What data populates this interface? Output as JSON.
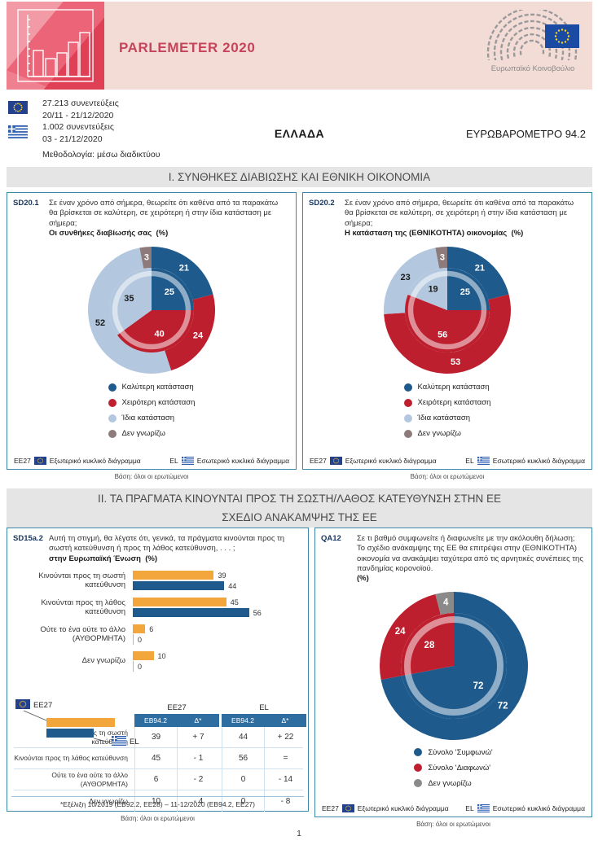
{
  "header": {
    "title": "PARLEMETER 2020",
    "ep_caption": "Ευρωπαϊκό Κοινοβούλιο"
  },
  "meta": {
    "eu_interviews": "27.213 συνεντεύξεις",
    "eu_dates": "20/11 - 21/12/2020",
    "el_interviews": "1.002 συνεντεύξεις",
    "el_dates": "03 - 21/12/2020",
    "methodology": "Μεθοδολογία: μέσω διαδικτύου",
    "country": "ΕΛΛΑΔΑ",
    "survey": "ΕΥΡΩΒΑΡΟΜΕΤΡΟ 94.2"
  },
  "sections": {
    "one_title": "Ι. ΣΥΝΘΗΚΕΣ ΔΙΑΒΙΩΣΗΣ ΚΑΙ ΕΘΝΙΚΗ ΟΙΚΟΝΟΜΙΑ",
    "two_title_line1": "ΙΙ. ΤΑ ΠΡΑΓΜΑΤΑ ΚΙΝΟΥΝΤΑΙ ΠΡΟΣ ΤΗ ΣΩΣΤΗ/ΛΑΘΟΣ ΚΑΤΕΥΘΥΝΣΗ ΣΤΗΝ ΕΕ",
    "two_title_line2": "ΣΧΕΔΙΟ ΑΝΑΚΑΜΨΗΣ ΤΗΣ ΕΕ"
  },
  "labels": {
    "ee27": "EE27",
    "el": "EL",
    "outer_note": "Εξωτερικό κυκλικό διάγραμμα",
    "inner_note": "Εσωτερικό κυκλικό διάγραμμα",
    "base": "Βάση: όλοι οι ερωτώμενοι",
    "page_number": "1"
  },
  "colors": {
    "dark_blue": "#1E5A8C",
    "red": "#BE1F2E",
    "light_blue": "#B3C8DF",
    "taupe": "#8D7B7B",
    "gray": "#8A8A8A",
    "orange": "#F2A63C",
    "panel_border": "#3D88A8",
    "header_pink": "#F3DBD6",
    "logo_red": "#EB6477",
    "title_red": "#C5445C",
    "table_header_blue": "#2D6D9F"
  },
  "chart_data": [
    {
      "id": "sd20_1",
      "type": "pie",
      "code": "SD20.1",
      "question": "Σε έναν χρόνο από σήμερα, θεωρείτε ότι καθένα από τα παρακάτω θα βρίσκεται σε καλύτερη, σε χειρότερη ή στην ίδια κατάσταση με σήμερα;",
      "question_bold": "Οι συνθήκες διαβίωσής σας",
      "unit": "(%)",
      "categories": [
        "Καλύτερη κατάσταση",
        "Χειρότερη κατάσταση",
        "Ίδια κατάσταση",
        "Δεν γνωρίζω"
      ],
      "colors": [
        "#1E5A8C",
        "#BE1F2E",
        "#B3C8DF",
        "#8D7B7B"
      ],
      "label_colors": [
        "#FFFFFF",
        "#FFFFFF",
        "#1A1A1A",
        "#FFFFFF"
      ],
      "legend_position": "bottom",
      "series": [
        {
          "name": "EE27",
          "ring": "outer",
          "values": [
            21,
            24,
            52,
            3
          ]
        },
        {
          "name": "EL",
          "ring": "inner",
          "values": [
            25,
            40,
            35,
            0
          ]
        }
      ]
    },
    {
      "id": "sd20_2",
      "type": "pie",
      "code": "SD20.2",
      "question": "Σε έναν χρόνο από σήμερα, θεωρείτε ότι καθένα από τα παρακάτω θα βρίσκεται σε καλύτερη, σε χειρότερη ή στην ίδια κατάσταση με σήμερα;",
      "question_bold": "Η κατάσταση της (ΕΘΝΙΚΟΤΗΤΑ) οικονομίας",
      "unit": "(%)",
      "categories": [
        "Καλύτερη κατάσταση",
        "Χειρότερη κατάσταση",
        "Ίδια κατάσταση",
        "Δεν γνωρίζω"
      ],
      "colors": [
        "#1E5A8C",
        "#BE1F2E",
        "#B3C8DF",
        "#8D7B7B"
      ],
      "label_colors": [
        "#FFFFFF",
        "#FFFFFF",
        "#1A1A1A",
        "#FFFFFF"
      ],
      "legend_position": "bottom",
      "series": [
        {
          "name": "EE27",
          "ring": "outer",
          "values": [
            21,
            53,
            23,
            3
          ]
        },
        {
          "name": "EL",
          "ring": "inner",
          "values": [
            25,
            56,
            19,
            0
          ]
        }
      ]
    },
    {
      "id": "sd15a_2",
      "type": "bar",
      "code": "SD15a.2",
      "question": "Αυτή τη στιγμή, θα λέγατε ότι, γενικά, τα πράγματα κινούνται προς τη σωστή κατεύθυνση ή προς τη λάθος κατεύθυνση, . . . ;",
      "question_bold": "στην Ευρωπαϊκή Ένωση",
      "unit": "(%)",
      "categories": [
        "Κινούνται προς τη σωστή κατεύθυνση",
        "Κινούνται προς τη λάθος κατεύθυνση",
        "Ούτε το ένα ούτε το άλλο (ΑΥΘΟΡΜΗΤΑ)",
        "Δεν γνωρίζω"
      ],
      "xlim": [
        0,
        60
      ],
      "series": [
        {
          "name": "EE27",
          "color": "#F2A63C",
          "values": [
            39,
            45,
            6,
            10
          ]
        },
        {
          "name": "EL",
          "color": "#1E5A8C",
          "values": [
            44,
            56,
            0,
            0
          ]
        }
      ],
      "table": {
        "group_headers": [
          "EE27",
          "EL"
        ],
        "col_headers": [
          "EB94.2",
          "Δ*",
          "EB94.2",
          "Δ*"
        ],
        "rows": [
          {
            "label": "Κινούνται προς τη σωστή κατεύθυνση",
            "values": [
              "39",
              "+ 7",
              "44",
              "+ 22"
            ]
          },
          {
            "label": "Κινούνται προς τη λάθος κατεύθυνση",
            "values": [
              "45",
              "- 1",
              "56",
              "="
            ]
          },
          {
            "label": "Ούτε το ένα ούτε το άλλο (ΑΥΘΟΡΜΗΤΑ)",
            "values": [
              "6",
              "- 2",
              "0",
              "- 14"
            ]
          },
          {
            "label": "Δεν γνωρίζω",
            "values": [
              "10",
              "- 4",
              "0",
              "- 8"
            ]
          }
        ],
        "footnote": "*Εξέλιξη 10/2019 (EB92.2, EE28) – 11-12/2020 (EB94.2, EE27)"
      }
    },
    {
      "id": "qa12",
      "type": "pie",
      "code": "QA12",
      "question": "Σε τι βαθμό συμφωνείτε ή διαφωνείτε με την ακόλουθη δήλωση; Το σχέδιο ανάκαμψης της ΕΕ θα επιτρέψει στην (ΕΘΝΙΚΟΤΗΤΑ) οικονομία να ανακάμψει ταχύτερα από τις αρνητικές συνέπειες της πανδημίας κορονοϊού.",
      "question_bold": "",
      "unit": "(%)",
      "categories": [
        "Σύνολο 'Συμφωνώ'",
        "Σύνολο 'Διαφωνώ'",
        "Δεν γνωρίζω"
      ],
      "colors": [
        "#1E5A8C",
        "#BE1F2E",
        "#8A8A8A"
      ],
      "label_colors": [
        "#FFFFFF",
        "#FFFFFF",
        "#FFFFFF"
      ],
      "legend_position": "bottom",
      "series": [
        {
          "name": "EE27",
          "ring": "outer",
          "values": [
            72,
            24,
            4
          ]
        },
        {
          "name": "EL",
          "ring": "inner",
          "values": [
            72,
            28,
            0
          ]
        }
      ]
    }
  ]
}
